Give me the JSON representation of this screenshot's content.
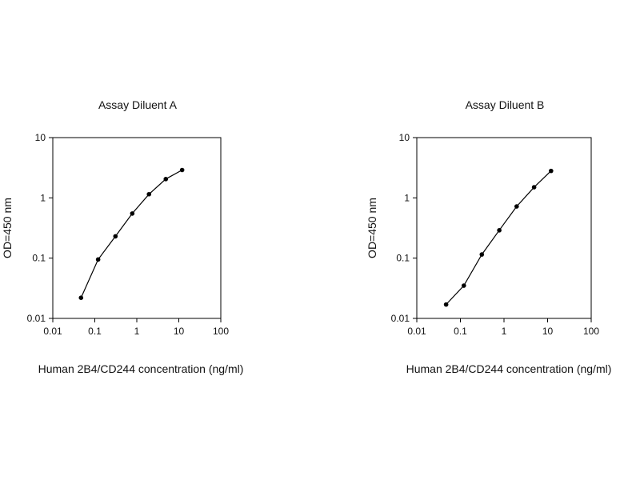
{
  "chart_data": [
    {
      "type": "line",
      "title": "Assay Diluent A",
      "xlabel": "Human 2B4/CD244 concentration (ng/ml)",
      "ylabel": "OD=450 nm",
      "xscale": "log",
      "yscale": "log",
      "xlim": [
        0.01,
        100
      ],
      "ylim": [
        0.01,
        10
      ],
      "xticks": [
        "0.01",
        "0.1",
        "1",
        "10",
        "100"
      ],
      "yticks": [
        "0.01",
        "0.1",
        "1",
        "10"
      ],
      "grid": false,
      "x": [
        0.047,
        0.12,
        0.31,
        0.78,
        1.95,
        4.9,
        12
      ],
      "y": [
        0.022,
        0.095,
        0.23,
        0.55,
        1.15,
        2.05,
        2.9
      ]
    },
    {
      "type": "line",
      "title": "Assay Diluent B",
      "xlabel": "Human 2B4/CD244 concentration (ng/ml)",
      "ylabel": "OD=450 nm",
      "xscale": "log",
      "yscale": "log",
      "xlim": [
        0.01,
        100
      ],
      "ylim": [
        0.01,
        10
      ],
      "xticks": [
        "0.01",
        "0.1",
        "1",
        "10",
        "100"
      ],
      "yticks": [
        "0.01",
        "0.1",
        "1",
        "10"
      ],
      "grid": false,
      "x": [
        0.047,
        0.12,
        0.31,
        0.78,
        1.95,
        4.9,
        12
      ],
      "y": [
        0.017,
        0.035,
        0.115,
        0.29,
        0.72,
        1.5,
        2.8
      ]
    }
  ]
}
